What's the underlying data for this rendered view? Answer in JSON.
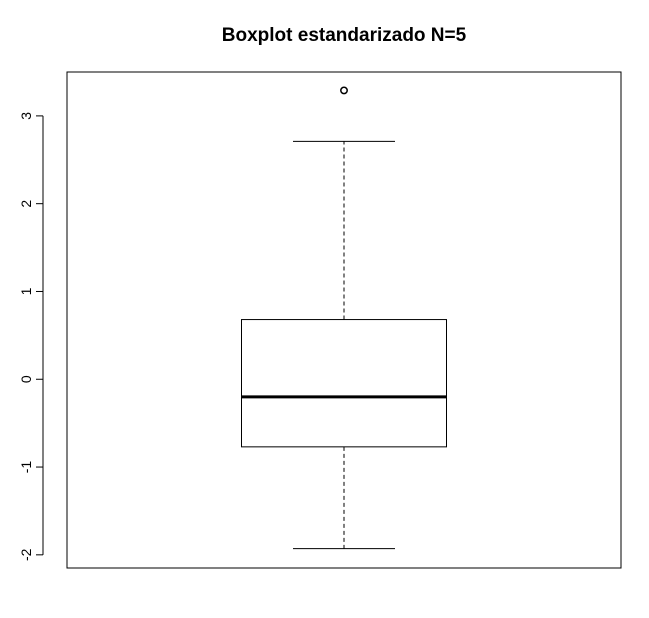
{
  "chart_data": {
    "type": "boxplot",
    "title": "Boxplot estandarizado N=5",
    "xlabel": "",
    "ylabel": "",
    "ylim": [
      -2.15,
      3.5
    ],
    "y_ticks": [
      -2,
      -1,
      0,
      1,
      2,
      3
    ],
    "y_tick_labels": [
      "-2",
      "-1",
      "0",
      "1",
      "2",
      "3"
    ],
    "grid": false,
    "legend": "none",
    "series": [
      {
        "whisker_low": -1.93,
        "q1": -0.77,
        "median": -0.2,
        "q3": 0.68,
        "whisker_high": 2.71,
        "outliers": [
          3.29
        ]
      }
    ],
    "colors": {
      "box_fill": "#ffffff",
      "stroke": "#000000"
    }
  }
}
